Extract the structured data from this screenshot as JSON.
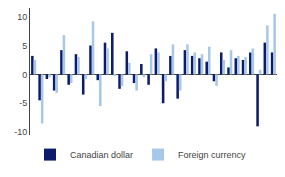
{
  "chart_data": {
    "type": "bar",
    "categories": [
      null,
      null,
      null,
      null,
      null,
      null,
      null,
      null,
      null,
      null,
      null,
      null,
      null,
      null,
      null,
      null,
      null,
      null,
      null,
      null,
      null,
      null,
      null,
      null,
      null,
      null,
      null,
      null,
      null,
      null,
      null,
      null,
      null,
      null
    ],
    "series": [
      {
        "name": "Canadian dollar",
        "color": "#0d1b6e",
        "values": [
          3.2,
          -4.5,
          -0.8,
          -2.8,
          4.2,
          -1.8,
          3.5,
          -3.5,
          5.0,
          -1.0,
          5.5,
          7.2,
          -2.5,
          4.0,
          -1.5,
          1.8,
          -1.8,
          4.5,
          -5.0,
          3.2,
          -4.2,
          4.2,
          3.2,
          2.8,
          2.2,
          -1.2,
          3.8,
          1.2,
          2.8,
          2.5,
          3.8,
          -9.0,
          5.5,
          3.8
        ]
      },
      {
        "name": "Foreign currency",
        "color": "#a8c8e8",
        "values": [
          2.5,
          -8.5,
          -0.5,
          -3.2,
          6.8,
          -1.5,
          3.0,
          -0.8,
          9.2,
          -5.5,
          4.5,
          -0.3,
          -2.0,
          2.0,
          -2.8,
          -0.5,
          3.5,
          3.8,
          -1.2,
          5.2,
          -2.8,
          5.2,
          3.8,
          3.5,
          4.8,
          -2.0,
          2.5,
          4.2,
          3.2,
          3.0,
          4.5,
          0.8,
          8.5,
          10.5
        ]
      }
    ],
    "ylim": [
      -10.5,
      11.5
    ],
    "yticks": [
      -10,
      -5,
      0,
      5,
      10
    ],
    "grid": false,
    "legend": "bottom",
    "tick_labels": "y"
  }
}
